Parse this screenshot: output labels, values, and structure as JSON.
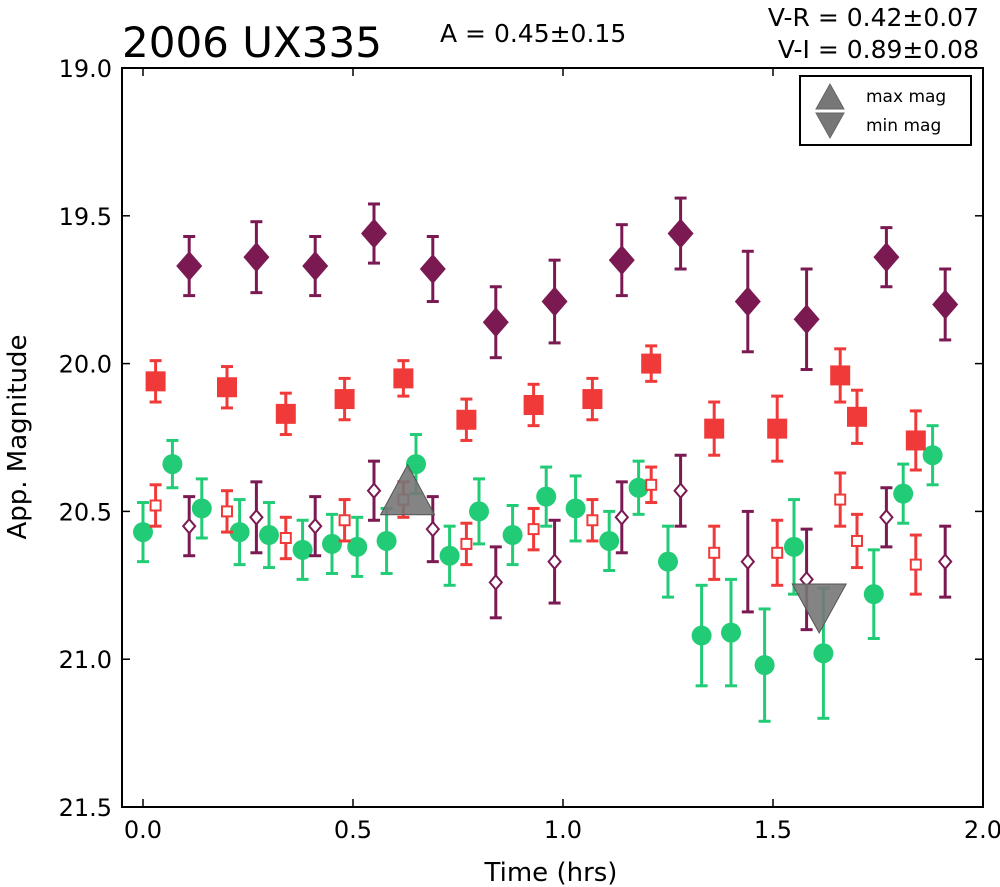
{
  "chart_data": {
    "type": "scatter",
    "title": "2006 UX335",
    "annotations": {
      "amplitude": "A  = 0.45±0.15",
      "v_r": "V-R = 0.42±0.07",
      "v_i": "V-I  = 0.89±0.08"
    },
    "xlabel": "Time (hrs)",
    "ylabel": "App. Magnitude",
    "xlim": [
      -0.05,
      2.0
    ],
    "ylim": [
      21.5,
      19.0
    ],
    "y_inverted": true,
    "xticks": [
      "0.0",
      "0.5",
      "1.0",
      "1.5",
      "2.0"
    ],
    "yticks": [
      "19.0",
      "19.5",
      "20.0",
      "20.5",
      "21.0",
      "21.5"
    ],
    "grid": false,
    "legend": {
      "placement": "top-right",
      "entries": [
        {
          "label": "max mag",
          "marker": "triangle-up"
        },
        {
          "label": "min mag",
          "marker": "triangle-down"
        }
      ]
    },
    "colors": {
      "purple": "#7b1a52",
      "red": "#f03a3a",
      "green": "#22cc77",
      "gray": "#777777"
    },
    "series": [
      {
        "marker": "diamond-filled",
        "color": "#7b1a52",
        "x": [
          0.11,
          0.27,
          0.41,
          0.55,
          0.69,
          0.84,
          0.98,
          1.14,
          1.28,
          1.44,
          1.58,
          1.77,
          1.91
        ],
        "y": [
          19.67,
          19.64,
          19.67,
          19.56,
          19.68,
          19.86,
          19.79,
          19.65,
          19.56,
          19.79,
          19.85,
          19.64,
          19.8
        ],
        "err": [
          0.1,
          0.12,
          0.1,
          0.1,
          0.11,
          0.12,
          0.14,
          0.12,
          0.12,
          0.17,
          0.17,
          0.1,
          0.12
        ]
      },
      {
        "marker": "square-filled",
        "color": "#f03a3a",
        "x": [
          0.03,
          0.2,
          0.34,
          0.48,
          0.62,
          0.77,
          0.93,
          1.07,
          1.21,
          1.36,
          1.51,
          1.66,
          1.7,
          1.84
        ],
        "y": [
          20.06,
          20.08,
          20.17,
          20.12,
          20.05,
          20.19,
          20.14,
          20.12,
          20.0,
          20.22,
          20.22,
          20.04,
          20.18,
          20.26
        ],
        "err": [
          0.07,
          0.07,
          0.07,
          0.07,
          0.06,
          0.07,
          0.07,
          0.07,
          0.06,
          0.09,
          0.11,
          0.09,
          0.09,
          0.1
        ]
      },
      {
        "marker": "circle-filled",
        "color": "#22cc77",
        "x": [
          0.0,
          0.07,
          0.14,
          0.23,
          0.3,
          0.38,
          0.45,
          0.51,
          0.58,
          0.65,
          0.73,
          0.8,
          0.88,
          0.96,
          1.03,
          1.11,
          1.18,
          1.25,
          1.33,
          1.4,
          1.48,
          1.55,
          1.62,
          1.74,
          1.81,
          1.88
        ],
        "y": [
          20.57,
          20.34,
          20.49,
          20.57,
          20.58,
          20.63,
          20.61,
          20.62,
          20.6,
          20.34,
          20.65,
          20.5,
          20.58,
          20.45,
          20.49,
          20.6,
          20.42,
          20.67,
          20.92,
          20.91,
          21.02,
          20.62,
          20.98,
          20.78,
          20.44,
          20.31
        ],
        "err": [
          0.1,
          0.08,
          0.1,
          0.11,
          0.11,
          0.1,
          0.1,
          0.1,
          0.11,
          0.1,
          0.1,
          0.11,
          0.1,
          0.1,
          0.11,
          0.1,
          0.09,
          0.12,
          0.17,
          0.18,
          0.19,
          0.16,
          0.22,
          0.15,
          0.1,
          0.1
        ]
      },
      {
        "marker": "square-open",
        "color": "#f03a3a",
        "x": [
          0.03,
          0.2,
          0.34,
          0.48,
          0.62,
          0.77,
          0.93,
          1.07,
          1.21,
          1.36,
          1.51,
          1.66,
          1.7,
          1.84
        ],
        "y": [
          20.48,
          20.5,
          20.59,
          20.53,
          20.46,
          20.61,
          20.56,
          20.53,
          20.41,
          20.64,
          20.64,
          20.46,
          20.6,
          20.68
        ],
        "err": [
          0.07,
          0.07,
          0.07,
          0.07,
          0.06,
          0.07,
          0.07,
          0.07,
          0.06,
          0.09,
          0.11,
          0.09,
          0.09,
          0.1
        ]
      },
      {
        "marker": "diamond-open",
        "color": "#7b1a52",
        "x": [
          0.11,
          0.27,
          0.41,
          0.55,
          0.69,
          0.84,
          0.98,
          1.14,
          1.28,
          1.44,
          1.58,
          1.77,
          1.91
        ],
        "y": [
          20.55,
          20.52,
          20.55,
          20.43,
          20.56,
          20.74,
          20.67,
          20.52,
          20.43,
          20.67,
          20.73,
          20.52,
          20.67
        ],
        "err": [
          0.1,
          0.12,
          0.1,
          0.1,
          0.11,
          0.12,
          0.14,
          0.12,
          0.12,
          0.17,
          0.17,
          0.1,
          0.12
        ]
      }
    ],
    "extrema": [
      {
        "type": "max",
        "marker": "triangle-up",
        "x": 0.63,
        "y": 20.43
      },
      {
        "type": "min",
        "marker": "triangle-down",
        "x": 1.61,
        "y": 20.82
      }
    ]
  }
}
